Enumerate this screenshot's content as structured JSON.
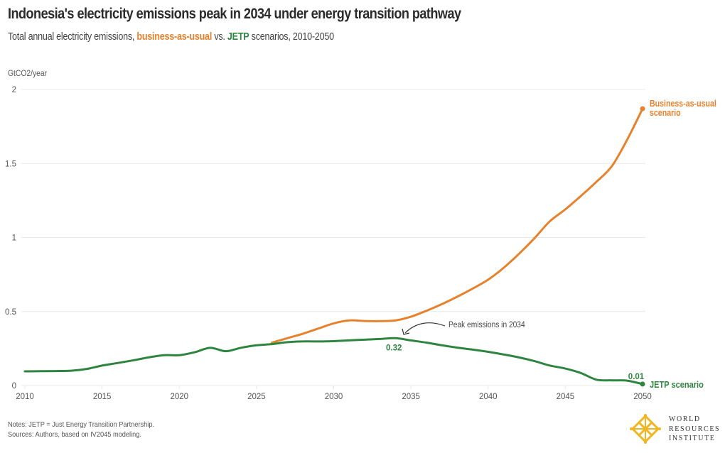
{
  "header": {
    "title": "Indonesia's electricity emissions peak in 2034 under energy transition pathway",
    "subtitle_pre": "Total annual electricity emissions, ",
    "subtitle_bau": "business-as-usual",
    "subtitle_mid": " vs. ",
    "subtitle_jetp": "JETP",
    "subtitle_post": " scenarios, 2010-2050"
  },
  "footer": {
    "notes": "Notes: JETP = Just Energy Transition Partnership.",
    "sources": "Sources: Authors, based on IV2045 modeling."
  },
  "logo": {
    "line1": "WORLD",
    "line2": "RESOURCES",
    "line3": "INSTITUTE"
  },
  "colors": {
    "bau": "#e6822d",
    "jetp": "#2e8540",
    "grid": "#e8e8e8",
    "annotation": "#333333"
  },
  "chart_data": {
    "type": "line",
    "title": "Indonesia's electricity emissions peak in 2034 under energy transition pathway",
    "subtitle": "Total annual electricity emissions, business-as-usual vs. JETP scenarios, 2010-2050",
    "xlabel": "",
    "ylabel": "GtCO2/year",
    "xlim": [
      2010,
      2050
    ],
    "ylim": [
      0,
      2
    ],
    "x_ticks": [
      2010,
      2015,
      2020,
      2025,
      2030,
      2035,
      2040,
      2045,
      2050
    ],
    "y_ticks": [
      0,
      0.5,
      1,
      1.5,
      2
    ],
    "y_tick_labels": [
      "0",
      "0.5",
      "1",
      "1.5",
      "2"
    ],
    "grid": true,
    "series": [
      {
        "name": "JETP scenario",
        "color": "#2e8540",
        "x": [
          2010,
          2011,
          2012,
          2013,
          2014,
          2015,
          2016,
          2017,
          2018,
          2019,
          2020,
          2021,
          2022,
          2023,
          2024,
          2025,
          2026,
          2027,
          2028,
          2029,
          2030,
          2031,
          2032,
          2033,
          2034,
          2035,
          2036,
          2037,
          2038,
          2039,
          2040,
          2041,
          2042,
          2043,
          2044,
          2045,
          2046,
          2047,
          2048,
          2049,
          2050
        ],
        "values": [
          0.096,
          0.097,
          0.098,
          0.1,
          0.112,
          0.135,
          0.152,
          0.17,
          0.19,
          0.205,
          0.205,
          0.225,
          0.255,
          0.232,
          0.255,
          0.272,
          0.28,
          0.293,
          0.298,
          0.298,
          0.3,
          0.305,
          0.31,
          0.315,
          0.32,
          0.305,
          0.29,
          0.272,
          0.256,
          0.243,
          0.228,
          0.21,
          0.19,
          0.165,
          0.135,
          0.115,
          0.085,
          0.04,
          0.035,
          0.033,
          0.01
        ]
      },
      {
        "name": "Business-as-usual scenario",
        "color": "#e6822d",
        "x": [
          2026,
          2027,
          2028,
          2029,
          2030,
          2031,
          2032,
          2033,
          2034,
          2035,
          2036,
          2037,
          2038,
          2039,
          2040,
          2041,
          2042,
          2043,
          2044,
          2045,
          2046,
          2047,
          2048,
          2049,
          2050
        ],
        "values": [
          0.29,
          0.32,
          0.35,
          0.385,
          0.42,
          0.44,
          0.436,
          0.435,
          0.44,
          0.465,
          0.505,
          0.55,
          0.6,
          0.655,
          0.715,
          0.795,
          0.89,
          0.995,
          1.11,
          1.19,
          1.28,
          1.375,
          1.48,
          1.66,
          1.87
        ]
      }
    ],
    "labels": {
      "bau_end": [
        "Business-as-usual",
        "scenario"
      ],
      "jetp_end": "JETP scenario",
      "jetp_end_value": "0.01",
      "peak_value": "0.32",
      "peak_annotation": "Peak emissions in 2034"
    }
  }
}
